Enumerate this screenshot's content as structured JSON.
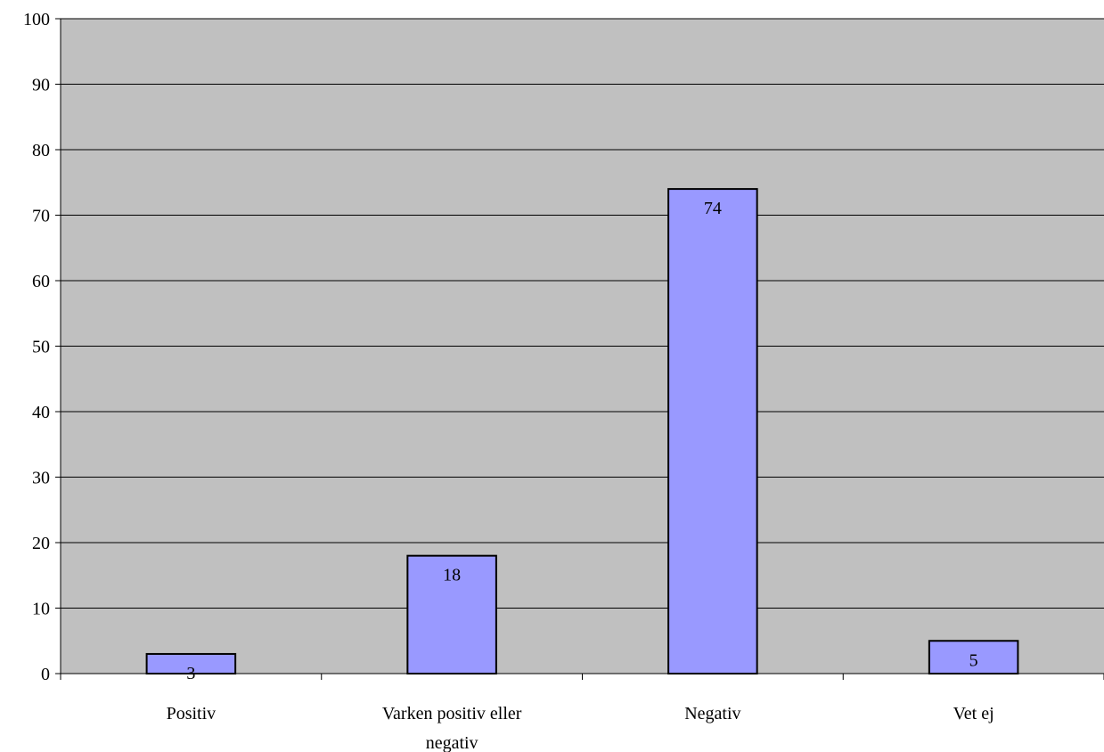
{
  "chart_data": {
    "type": "bar",
    "categories": [
      "Positiv",
      "Varken positiv eller negativ",
      "Negativ",
      "Vet ej"
    ],
    "category_lines": [
      [
        "Positiv"
      ],
      [
        "Varken positiv eller",
        "negativ"
      ],
      [
        "Negativ"
      ],
      [
        "Vet ej"
      ]
    ],
    "values": [
      3,
      18,
      74,
      5
    ],
    "data_labels": [
      "3",
      "18",
      "74",
      "5"
    ],
    "ylim": [
      0,
      100
    ],
    "yticks": [
      0,
      10,
      20,
      30,
      40,
      50,
      60,
      70,
      80,
      90,
      100
    ],
    "grid": true,
    "legend": "none",
    "colors": {
      "bar_fill": "#9999ff",
      "bar_stroke": "#000000",
      "plot_background": "#c0c0c0",
      "gridline": "#000000"
    }
  }
}
